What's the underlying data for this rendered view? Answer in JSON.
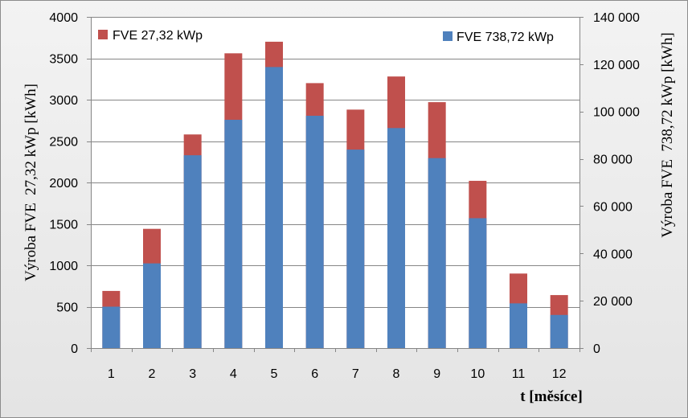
{
  "chart_data": {
    "type": "bar",
    "stacked": true,
    "categories": [
      "1",
      "2",
      "3",
      "4",
      "5",
      "6",
      "7",
      "8",
      "9",
      "10",
      "11",
      "12"
    ],
    "xlabel": "t [měsíce]",
    "ylabel_left": "Výroba FVE  27,32 kWp [kWh]",
    "ylabel_right": "Výroba FVE  738,72 kWp [kWh]",
    "ylim_left": [
      0,
      4000
    ],
    "ylim_right": [
      0,
      140000
    ],
    "yticks_left": [
      "0",
      "500",
      "1000",
      "1500",
      "2000",
      "2500",
      "3000",
      "3500",
      "4000"
    ],
    "yticks_right": [
      "0",
      "20 000",
      "40 000",
      "60 000",
      "80 000",
      "100 000",
      "120 000",
      "140 000"
    ],
    "grid": true,
    "series": [
      {
        "name": "FVE 738,72 kWp",
        "axis": "right",
        "color": "#4f81bd",
        "values": [
          17500,
          35800,
          81500,
          96500,
          118800,
          98200,
          83900,
          93000,
          80300,
          54900,
          18900,
          14000
        ]
      },
      {
        "name": "FVE 27,32 kWp",
        "axis": "left",
        "color": "#c0504d",
        "values": [
          690,
          1440,
          2580,
          3560,
          3700,
          3200,
          2880,
          3280,
          2970,
          2020,
          900,
          640
        ]
      }
    ],
    "legend_left": "FVE 27,32 kWp",
    "legend_right": "FVE 738,72 kWp"
  }
}
